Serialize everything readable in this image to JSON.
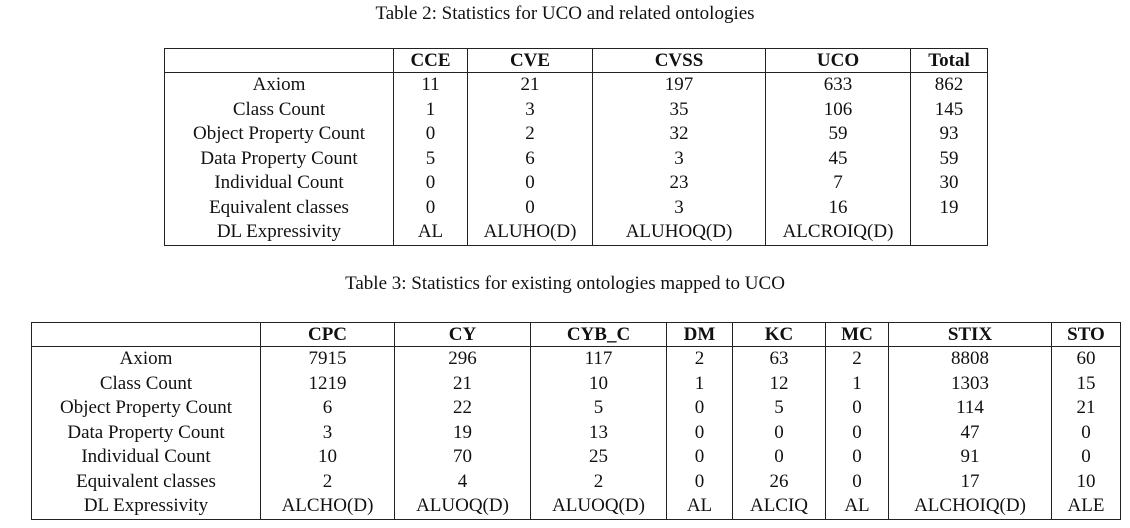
{
  "tables": [
    {
      "caption": "Table 2: Statistics for UCO and related ontologies",
      "columns": [
        "CCE",
        "CVE",
        "CVSS",
        "UCO",
        "Total"
      ],
      "rows": [
        {
          "label": "Axiom",
          "values": [
            11,
            21,
            197,
            633,
            862
          ]
        },
        {
          "label": "Class Count",
          "values": [
            1,
            3,
            35,
            106,
            145
          ]
        },
        {
          "label": "Object Property Count",
          "values": [
            0,
            2,
            32,
            59,
            93
          ]
        },
        {
          "label": "Data Property Count",
          "values": [
            5,
            6,
            3,
            45,
            59
          ]
        },
        {
          "label": "Individual Count",
          "values": [
            0,
            0,
            23,
            7,
            30
          ]
        },
        {
          "label": "Equivalent classes",
          "values": [
            0,
            0,
            3,
            16,
            19
          ]
        },
        {
          "label": "DL Expressivity",
          "values": [
            "AL",
            "ALUHO(D)",
            "ALUHOQ(D)",
            "ALCROIQ(D)"
          ]
        }
      ]
    },
    {
      "caption": "Table 3: Statistics for existing ontologies mapped to UCO",
      "columns": [
        "CPC",
        "CY",
        "CYB_C",
        "DM",
        "KC",
        "MC",
        "STIX",
        "STO"
      ],
      "rows": [
        {
          "label": "Axiom",
          "values": [
            7915,
            296,
            117,
            2,
            63,
            2,
            8808,
            60
          ]
        },
        {
          "label": "Class Count",
          "values": [
            1219,
            21,
            10,
            1,
            12,
            1,
            1303,
            15
          ]
        },
        {
          "label": "Object Property Count",
          "values": [
            6,
            22,
            5,
            0,
            5,
            0,
            114,
            21
          ]
        },
        {
          "label": "Data Property Count",
          "values": [
            3,
            19,
            13,
            0,
            0,
            0,
            47,
            0
          ]
        },
        {
          "label": "Individual Count",
          "values": [
            10,
            70,
            25,
            0,
            0,
            0,
            91,
            0
          ]
        },
        {
          "label": "Equivalent classes",
          "values": [
            2,
            4,
            2,
            0,
            26,
            0,
            17,
            10
          ]
        },
        {
          "label": "DL Expressivity",
          "values": [
            "ALCHO(D)",
            "ALUOQ(D)",
            "ALUOQ(D)",
            "AL",
            "ALCIQ",
            "AL",
            "ALCHOIQ(D)",
            "ALE"
          ]
        }
      ]
    }
  ]
}
